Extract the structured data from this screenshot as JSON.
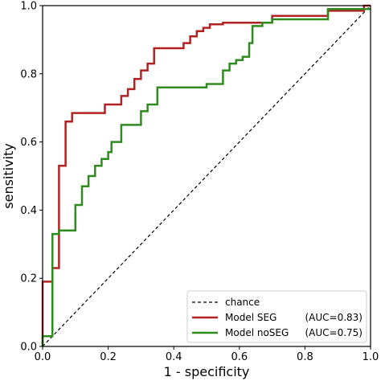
{
  "chart_data": {
    "type": "line",
    "title": "",
    "xlabel": "1 - specificity",
    "ylabel": "sensitivity",
    "xlim": [
      0,
      1
    ],
    "ylim": [
      0,
      1
    ],
    "x_ticks": [
      "0.0",
      "0.2",
      "0.4",
      "0.6",
      "0.8",
      "1.0"
    ],
    "y_ticks": [
      "0.0",
      "0.2",
      "0.4",
      "0.6",
      "0.8",
      "1.0"
    ],
    "grid": false,
    "legend_position": "bottom-right",
    "legend": [
      {
        "label": "chance",
        "auc": ""
      },
      {
        "label": "Model SEG",
        "auc": "(AUC=0.83)"
      },
      {
        "label": "Model noSEG",
        "auc": "(AUC=0.75)"
      }
    ],
    "series": [
      {
        "name": "chance",
        "color": "#000000",
        "dashed": true,
        "x": [
          0,
          1
        ],
        "y": [
          0,
          1
        ]
      },
      {
        "name": "Model SEG",
        "color": "#b22222",
        "dashed": false,
        "x": [
          0,
          0,
          0.0125,
          0.0125,
          0.03,
          0.03,
          0.05,
          0.05,
          0.07,
          0.07,
          0.09,
          0.09,
          0.19,
          0.19,
          0.24,
          0.24,
          0.26,
          0.26,
          0.28,
          0.28,
          0.3,
          0.3,
          0.32,
          0.32,
          0.34,
          0.34,
          0.37,
          0.37,
          0.43,
          0.43,
          0.45,
          0.45,
          0.47,
          0.47,
          0.49,
          0.49,
          0.51,
          0.51,
          0.55,
          0.55,
          0.57,
          0.57,
          0.7,
          0.7,
          0.87,
          0.87,
          0.98,
          0.98,
          1.0
        ],
        "y": [
          0,
          0.19,
          0.19,
          0.19,
          0.19,
          0.23,
          0.23,
          0.53,
          0.53,
          0.66,
          0.66,
          0.685,
          0.685,
          0.71,
          0.71,
          0.735,
          0.735,
          0.755,
          0.755,
          0.785,
          0.785,
          0.81,
          0.81,
          0.83,
          0.83,
          0.875,
          0.875,
          0.875,
          0.875,
          0.89,
          0.89,
          0.91,
          0.91,
          0.925,
          0.925,
          0.935,
          0.935,
          0.945,
          0.945,
          0.95,
          0.95,
          0.95,
          0.95,
          0.97,
          0.97,
          0.985,
          0.985,
          1.0,
          1.0
        ]
      },
      {
        "name": "Model noSEG",
        "color": "#2e8b1e",
        "dashed": false,
        "x": [
          0,
          0,
          0.02,
          0.02,
          0.03,
          0.03,
          0.05,
          0.05,
          0.1,
          0.1,
          0.12,
          0.12,
          0.14,
          0.14,
          0.16,
          0.16,
          0.18,
          0.18,
          0.2,
          0.2,
          0.21,
          0.21,
          0.24,
          0.24,
          0.3,
          0.3,
          0.32,
          0.32,
          0.35,
          0.35,
          0.5,
          0.5,
          0.55,
          0.55,
          0.57,
          0.57,
          0.59,
          0.59,
          0.61,
          0.61,
          0.63,
          0.63,
          0.64,
          0.64,
          0.67,
          0.67,
          0.7,
          0.7,
          0.87,
          0.87,
          1.0
        ],
        "y": [
          0,
          0.03,
          0.03,
          0.03,
          0.03,
          0.33,
          0.33,
          0.34,
          0.34,
          0.415,
          0.415,
          0.47,
          0.47,
          0.5,
          0.5,
          0.53,
          0.53,
          0.55,
          0.55,
          0.57,
          0.57,
          0.6,
          0.6,
          0.65,
          0.65,
          0.69,
          0.69,
          0.71,
          0.71,
          0.76,
          0.76,
          0.77,
          0.77,
          0.81,
          0.81,
          0.83,
          0.83,
          0.84,
          0.84,
          0.85,
          0.85,
          0.89,
          0.89,
          0.94,
          0.94,
          0.95,
          0.95,
          0.96,
          0.96,
          0.99,
          0.99
        ]
      }
    ]
  }
}
